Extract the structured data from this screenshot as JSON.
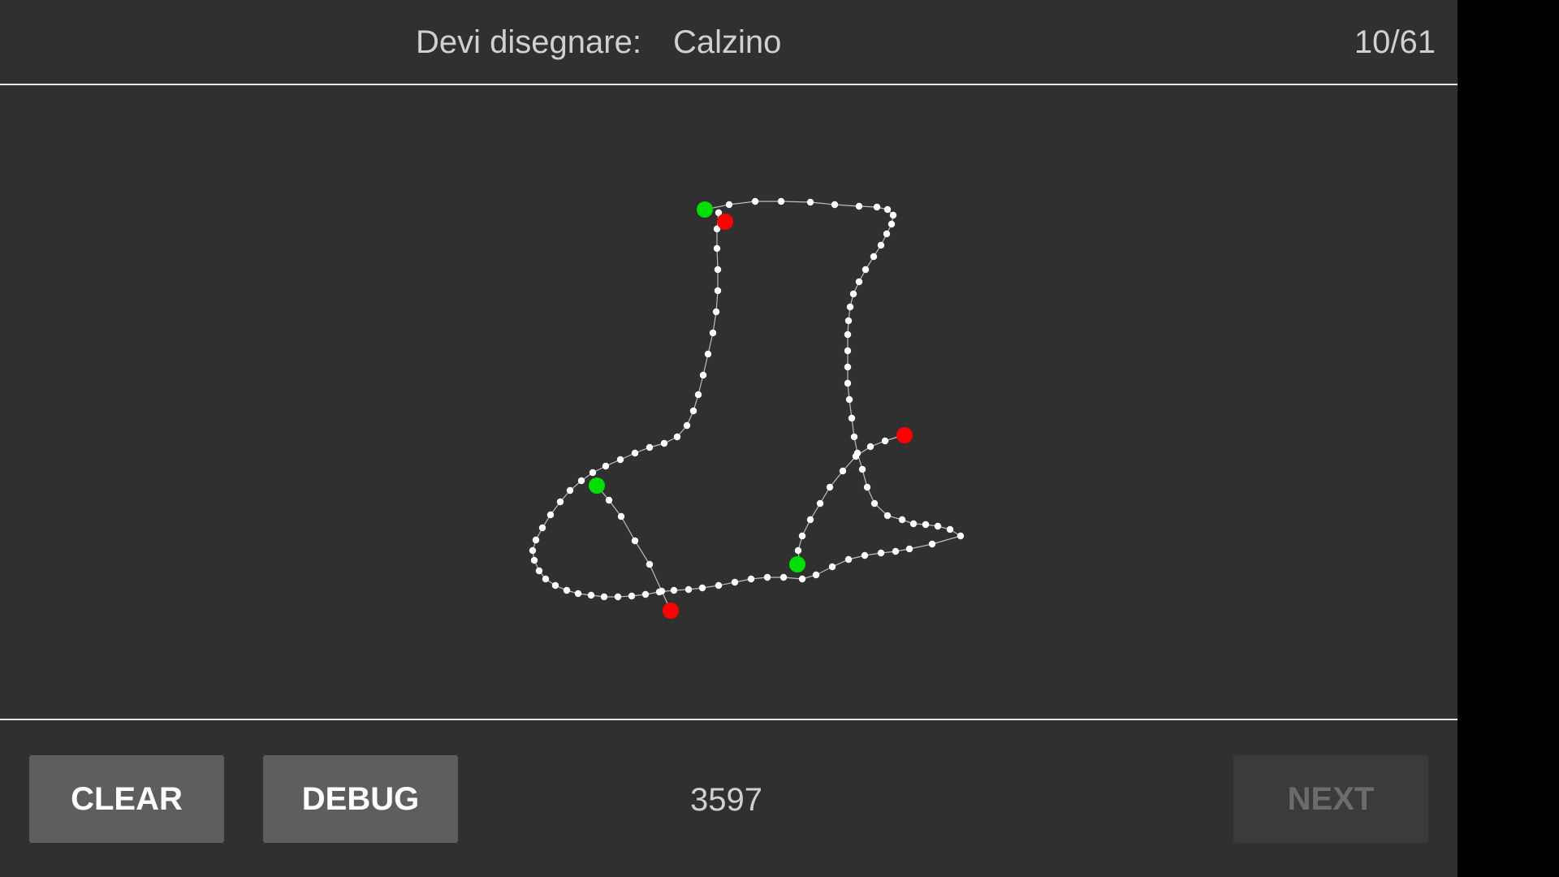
{
  "header": {
    "prompt_label": "Devi disegnare:",
    "prompt_word": "Calzino",
    "progress": "10/61"
  },
  "toolbar": {
    "clear_label": "CLEAR",
    "debug_label": "DEBUG",
    "score": "3597",
    "next_label": "NEXT"
  },
  "colors": {
    "background": "#303030",
    "divider": "#e6e6e6",
    "stroke_point": "#ffffff",
    "stroke_line": "#bdbdbd",
    "stroke_start": "#00e000",
    "stroke_end": "#ff0000",
    "button_bg": "#5e5e60",
    "button_disabled_bg": "#3b3b3b"
  }
}
